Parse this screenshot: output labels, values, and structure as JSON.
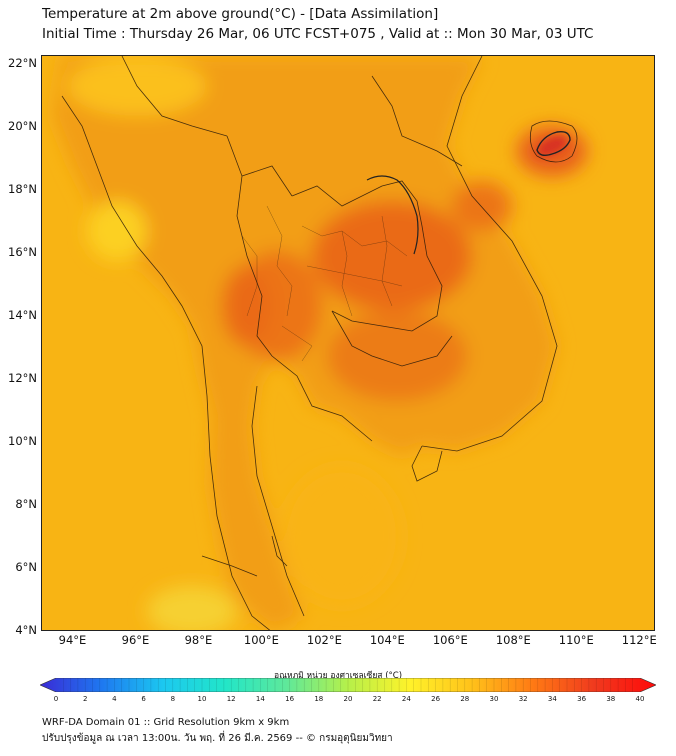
{
  "title": {
    "line1": "Temperature at 2m above ground(°C) - [Data Assimilation]",
    "line2": "Initial Time : Thursday 26 Mar, 06 UTC FCST+075 , Valid at :: Mon 30 Mar, 03 UTC"
  },
  "axes": {
    "lat_labels": [
      "22°N",
      "20°N",
      "18°N",
      "16°N",
      "14°N",
      "12°N",
      "10°N",
      "8°N",
      "6°N",
      "4°N"
    ],
    "lat_values": [
      22,
      20,
      18,
      16,
      14,
      12,
      10,
      8,
      6,
      4
    ],
    "lon_labels": [
      "94°E",
      "96°E",
      "98°E",
      "100°E",
      "102°E",
      "104°E",
      "106°E",
      "108°E",
      "110°E",
      "112°E"
    ],
    "lon_values": [
      94,
      96,
      98,
      100,
      102,
      104,
      106,
      108,
      110,
      112
    ],
    "lat_range": [
      4,
      22.3
    ],
    "lon_range": [
      93,
      112.5
    ]
  },
  "colorbar": {
    "title": "อุณหภูมิ หน่วย องศาเซลเซียส (°C)",
    "ticks": [
      "0",
      "2",
      "4",
      "6",
      "8",
      "10",
      "12",
      "14",
      "16",
      "18",
      "20",
      "22",
      "24",
      "26",
      "28",
      "30",
      "32",
      "34",
      "36",
      "38",
      "40"
    ],
    "range": [
      0,
      40
    ],
    "colors": [
      "#3a2bd6",
      "#1e78f0",
      "#1cc8f0",
      "#22e6c8",
      "#5fe89a",
      "#b6f04a",
      "#fff22a",
      "#ffc21a",
      "#ff7a14",
      "#f03a1e",
      "#ff0a0a"
    ]
  },
  "footer": {
    "line1": "WRF-DA Domain 01 :: Grid Resolution 9km x 9km",
    "line2": "ปรับปรุงข้อมูล ณ เวลา 13:00น. วัน พฤ. ที่ 26 มี.ค. 2569 -- © กรมอุตุนิยมวิทยา"
  },
  "map_colors": {
    "sea": "#f8b414",
    "land": "#f09a12",
    "hot": "#ea6a18",
    "very_hot": "#e04e1e",
    "cool": "#fbd01c",
    "border": "#222222"
  }
}
